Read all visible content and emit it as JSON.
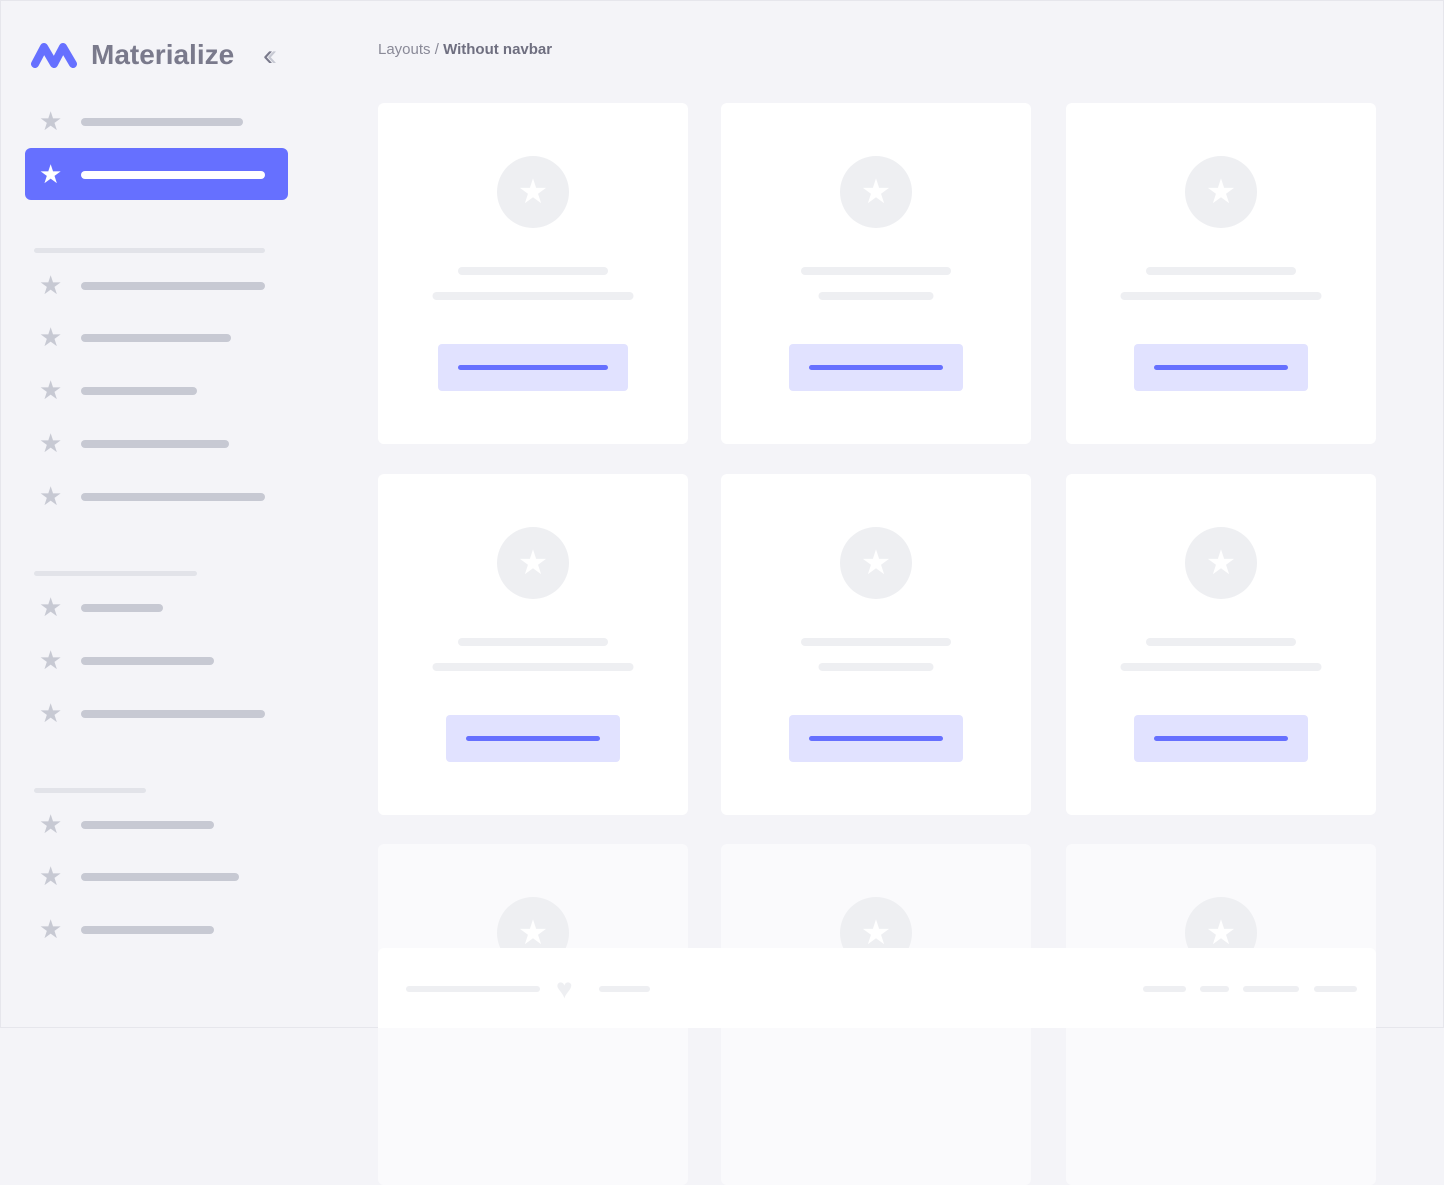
{
  "app": {
    "brand": "Materialize",
    "collapse_icon": "chevrons-left-icon",
    "logo_color": "#6670ff"
  },
  "breadcrumb": {
    "parent": "Layouts",
    "separator": "/",
    "current": "Without navbar"
  },
  "colors": {
    "accent": "#6670ff",
    "accent_light": "#e1e2ff",
    "skeleton": "#c7c9d3",
    "background": "#f4f4f8"
  },
  "sidebar": {
    "active_index": 1,
    "item_icon": "star-icon"
  },
  "footer": {
    "icon": "heart-icon"
  }
}
